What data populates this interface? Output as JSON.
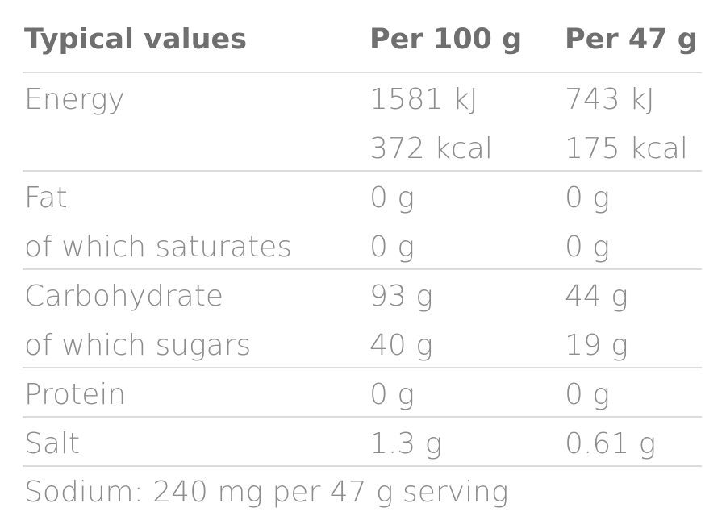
{
  "table": {
    "header": [
      "Typical values",
      "Per 100 g",
      "Per 47 g"
    ],
    "groups": [
      {
        "label": [
          "Energy"
        ],
        "per_100g": [
          "1581 kJ",
          "372 kcal"
        ],
        "per_serving": [
          "743 kJ",
          "175 kcal"
        ]
      },
      {
        "label": [
          "Fat",
          "of which saturates"
        ],
        "per_100g": [
          "0 g",
          "0 g"
        ],
        "per_serving": [
          "0 g",
          "0 g"
        ]
      },
      {
        "label": [
          "Carbohydrate",
          "of which sugars"
        ],
        "per_100g": [
          "93 g",
          "40 g"
        ],
        "per_serving": [
          "44 g",
          "19 g"
        ]
      },
      {
        "label": [
          "Protein"
        ],
        "per_100g": [
          "0 g"
        ],
        "per_serving": [
          "0 g"
        ]
      },
      {
        "label": [
          "Salt"
        ],
        "per_100g": [
          "1.3 g"
        ],
        "per_serving": [
          "0.61 g"
        ]
      }
    ],
    "footnote": "Sodium: 240 mg per 47 g serving"
  }
}
